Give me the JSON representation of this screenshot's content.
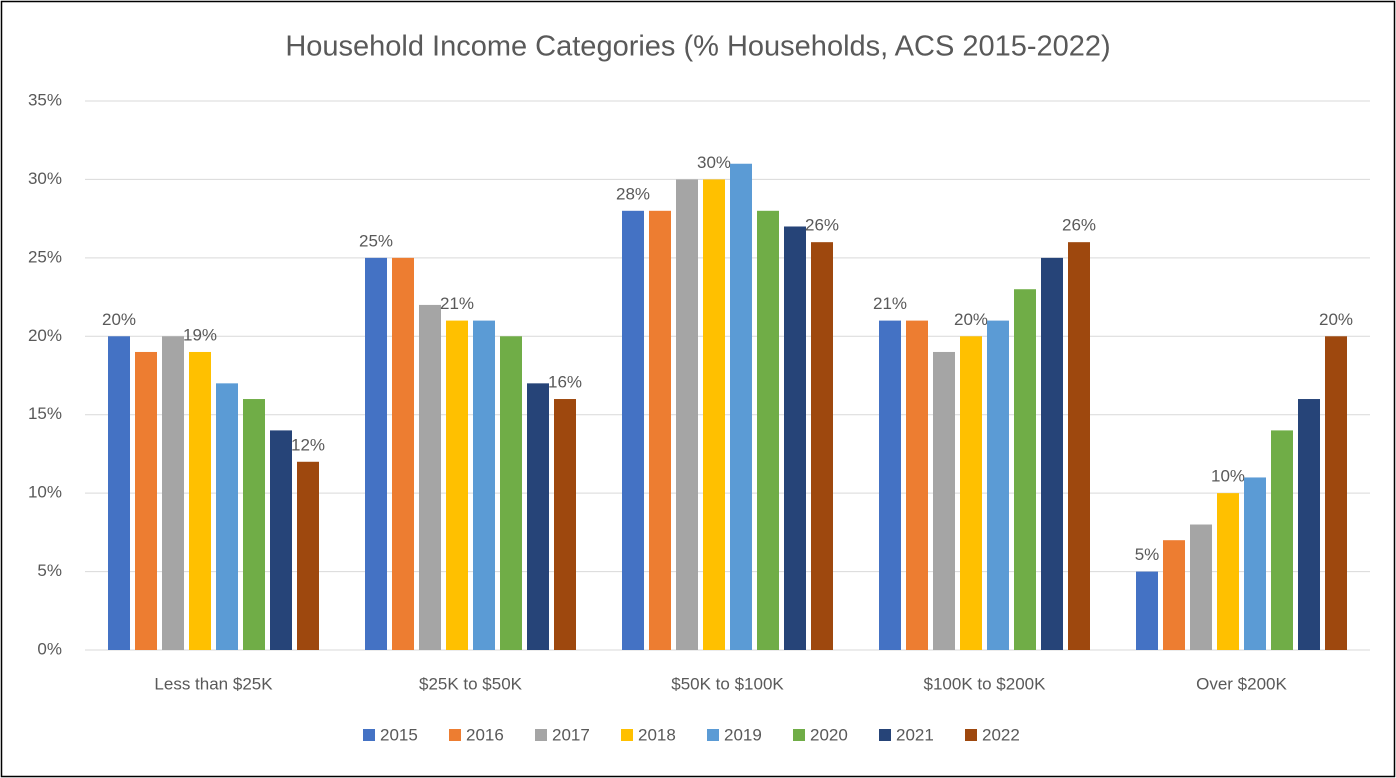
{
  "chart_data": {
    "type": "bar",
    "title": "Household Income Categories (% Households, ACS 2015-2022)",
    "categories": [
      "Less than $25K",
      "$25K to $50K",
      "$50K to $100K",
      "$100K to $200K",
      "Over $200K"
    ],
    "series": [
      {
        "name": "2015",
        "color": "#4472c4",
        "values": [
          20,
          25,
          28,
          21,
          5
        ],
        "value_labels": [
          "20%",
          "25%",
          "28%",
          "21%",
          "5%"
        ]
      },
      {
        "name": "2016",
        "color": "#ed7d31",
        "values": [
          19,
          25,
          28,
          21,
          7
        ]
      },
      {
        "name": "2017",
        "color": "#a5a5a5",
        "values": [
          20,
          22,
          30,
          19,
          8
        ]
      },
      {
        "name": "2018",
        "color": "#ffc000",
        "values": [
          19,
          21,
          30,
          20,
          10
        ],
        "value_labels": [
          "19%",
          "21%",
          "30%",
          "20%",
          "10%"
        ]
      },
      {
        "name": "2019",
        "color": "#5b9bd5",
        "values": [
          17,
          21,
          31,
          21,
          11
        ]
      },
      {
        "name": "2020",
        "color": "#70ad47",
        "values": [
          16,
          20,
          28,
          23,
          14
        ]
      },
      {
        "name": "2021",
        "color": "#264478",
        "values": [
          14,
          17,
          27,
          25,
          16
        ]
      },
      {
        "name": "2022",
        "color": "#9e480e",
        "values": [
          12,
          16,
          26,
          26,
          20
        ],
        "value_labels": [
          "12%",
          "16%",
          "26%",
          "26%",
          "20%"
        ]
      }
    ],
    "ylim": [
      0,
      35
    ],
    "yticks": [
      {
        "value": 0,
        "label": "0%"
      },
      {
        "value": 5,
        "label": "5%"
      },
      {
        "value": 10,
        "label": "10%"
      },
      {
        "value": 15,
        "label": "15%"
      },
      {
        "value": 20,
        "label": "20%"
      },
      {
        "value": 25,
        "label": "25%"
      },
      {
        "value": 30,
        "label": "30%"
      },
      {
        "value": 35,
        "label": "35%"
      }
    ],
    "grid": true,
    "legend": "bottom"
  }
}
